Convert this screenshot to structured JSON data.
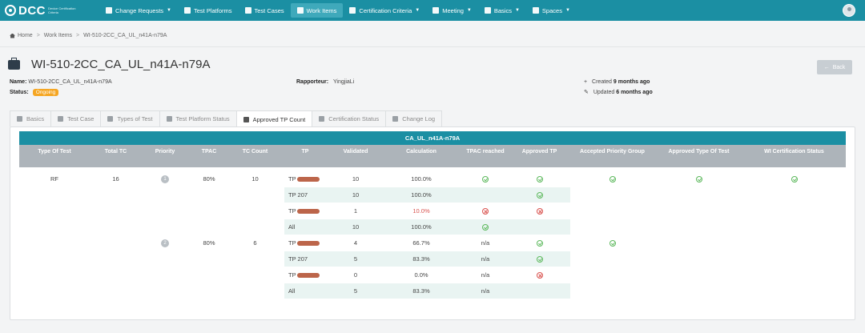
{
  "nav": {
    "logo": "DCC",
    "logo_sub": "Device Certification Criteria",
    "items": [
      {
        "label": "Change Requests",
        "caret": true,
        "active": false
      },
      {
        "label": "Test Platforms",
        "caret": false,
        "active": false
      },
      {
        "label": "Test Cases",
        "caret": false,
        "active": false
      },
      {
        "label": "Work Items",
        "caret": false,
        "active": true
      },
      {
        "label": "Certification Criteria",
        "caret": true,
        "active": false
      },
      {
        "label": "Meeting",
        "caret": true,
        "active": false
      },
      {
        "label": "Basics",
        "caret": true,
        "active": false
      },
      {
        "label": "Spaces",
        "caret": true,
        "active": false
      }
    ]
  },
  "breadcrumb": [
    "Home",
    "Work Items",
    "WI-510-2CC_CA_UL_n41A-n79A"
  ],
  "page_title": "WI-510-2CC_CA_UL_n41A-n79A",
  "back_label": "Back",
  "meta": {
    "name_label": "Name:",
    "name_value": "WI-510-2CC_CA_UL_n41A-n79A",
    "status_label": "Status:",
    "status_value": "Ongoing",
    "rapporteur_label": "Rapporteur:",
    "rapporteur_value": "YingjiaLi",
    "created_prefix": "Created",
    "created_value": "9 months ago",
    "updated_prefix": "Updated",
    "updated_value": "6 months ago"
  },
  "tabs": [
    {
      "label": "Basics",
      "active": false
    },
    {
      "label": "Test Case",
      "active": false
    },
    {
      "label": "Types of Test",
      "active": false
    },
    {
      "label": "Test Platform Status",
      "active": false
    },
    {
      "label": "Approved TP Count",
      "active": true
    },
    {
      "label": "Certification Status",
      "active": false
    },
    {
      "label": "Change Log",
      "active": false
    }
  ],
  "table": {
    "title": "CA_UL_n41A-n79A",
    "headers": [
      "Type Of Test",
      "Total TC",
      "Priority",
      "TPAC",
      "TC Count",
      "TP",
      "Validated",
      "Calculation",
      "TPAC reached",
      "Approved TP",
      "Accepted Priority Group",
      "Approved Type Of Test",
      "WI Certification Status"
    ],
    "type_of_test": "RF",
    "total_tc": "16",
    "groups": [
      {
        "priority": "1",
        "tpac": "80%",
        "tc_count": "10",
        "accepted": "ok",
        "rows": [
          {
            "tp": "TP",
            "redacted": true,
            "validated": "10",
            "calculation": "100.0%",
            "calc_red": false,
            "tpac_reached": "ok",
            "approved": "ok"
          },
          {
            "tp": "TP 207",
            "redacted": false,
            "validated": "10",
            "calculation": "100.0%",
            "calc_red": false,
            "tpac_reached": "",
            "approved": "ok"
          },
          {
            "tp": "TP",
            "redacted": true,
            "validated": "1",
            "calculation": "10.0%",
            "calc_red": true,
            "tpac_reached": "bad",
            "approved": "bad"
          },
          {
            "tp": "All",
            "redacted": false,
            "validated": "10",
            "calculation": "100.0%",
            "calc_red": false,
            "tpac_reached": "ok",
            "approved": ""
          }
        ]
      },
      {
        "priority": "2",
        "tpac": "80%",
        "tc_count": "6",
        "accepted": "ok",
        "rows": [
          {
            "tp": "TP",
            "redacted": true,
            "validated": "4",
            "calculation": "66.7%",
            "calc_red": false,
            "tpac_reached": "n/a",
            "approved": "ok"
          },
          {
            "tp": "TP 207",
            "redacted": false,
            "validated": "5",
            "calculation": "83.3%",
            "calc_red": false,
            "tpac_reached": "n/a",
            "approved": "ok"
          },
          {
            "tp": "TP",
            "redacted": true,
            "validated": "0",
            "calculation": "0.0%",
            "calc_red": false,
            "tpac_reached": "n/a",
            "approved": "bad"
          },
          {
            "tp": "All",
            "redacted": false,
            "validated": "5",
            "calculation": "83.3%",
            "calc_red": false,
            "tpac_reached": "n/a",
            "approved": ""
          }
        ]
      }
    ],
    "approved_type_of_test": "ok",
    "wi_certification_status": "ok"
  }
}
